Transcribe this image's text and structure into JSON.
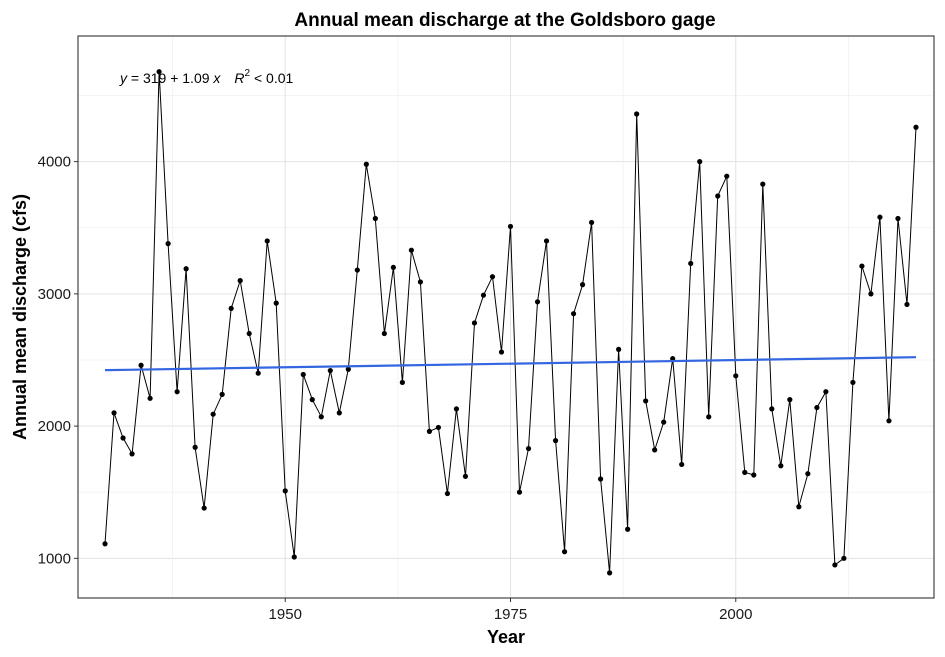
{
  "chart_data": {
    "type": "line",
    "title": "Annual mean discharge at the Goldsboro gage",
    "xlabel": "Year",
    "ylabel": "Annual mean discharge (cfs)",
    "xlim": [
      1927,
      2022
    ],
    "ylim": [
      700,
      4950
    ],
    "x_ticks": [
      1950,
      1975,
      2000
    ],
    "y_ticks": [
      1000,
      2000,
      3000,
      4000
    ],
    "grid": true,
    "series": [
      {
        "style": "line+points",
        "color": "#000000",
        "x": [
          1930,
          1931,
          1932,
          1933,
          1934,
          1935,
          1936,
          1937,
          1938,
          1939,
          1940,
          1941,
          1942,
          1943,
          1944,
          1945,
          1946,
          1947,
          1948,
          1949,
          1950,
          1951,
          1952,
          1953,
          1954,
          1955,
          1956,
          1957,
          1958,
          1959,
          1960,
          1961,
          1962,
          1963,
          1964,
          1965,
          1966,
          1967,
          1968,
          1969,
          1970,
          1971,
          1972,
          1973,
          1974,
          1975,
          1976,
          1977,
          1978,
          1979,
          1980,
          1981,
          1982,
          1983,
          1984,
          1985,
          1986,
          1987,
          1988,
          1989,
          1990,
          1991,
          1992,
          1993,
          1994,
          1995,
          1996,
          1997,
          1998,
          1999,
          2000,
          2001,
          2002,
          2003,
          2004,
          2005,
          2006,
          2007,
          2008,
          2009,
          2010,
          2011,
          2012,
          2013,
          2014,
          2015,
          2016,
          2017,
          2018,
          2019,
          2020
        ],
        "y": [
          1110,
          2100,
          1910,
          1790,
          2460,
          2210,
          4680,
          3380,
          2260,
          3190,
          1840,
          1380,
          2090,
          2240,
          2890,
          3100,
          2700,
          2400,
          3400,
          2930,
          1510,
          1010,
          2390,
          2200,
          2070,
          2420,
          2100,
          2430,
          3180,
          3980,
          3570,
          2700,
          3200,
          2330,
          3330,
          3090,
          1960,
          1990,
          1490,
          2130,
          1620,
          2780,
          2990,
          3130,
          2560,
          3510,
          1500,
          1830,
          2940,
          3400,
          1890,
          1050,
          2850,
          3070,
          3540,
          1600,
          890,
          2580,
          1220,
          4360,
          2190,
          1820,
          2030,
          2510,
          1710,
          3230,
          4000,
          2070,
          3740,
          3890,
          2380,
          1650,
          1630,
          3830,
          2130,
          1700,
          2200,
          1390,
          1640,
          2140,
          2260,
          950,
          1000,
          2330,
          3210,
          3000,
          3580,
          2040,
          3570,
          2920,
          4260
        ]
      },
      {
        "name": "linear fit",
        "style": "line",
        "color": "#3366e0",
        "x": [
          1930,
          2020
        ],
        "y": [
          2423,
          2521
        ]
      }
    ],
    "annotations": [
      {
        "equation_y": "y",
        "equation_rhs": " = 319 + 1.09 ",
        "equation_x": "x",
        "r2_label": "R",
        "r2_exp": "2",
        "r2_value": " < 0.01"
      }
    ]
  }
}
